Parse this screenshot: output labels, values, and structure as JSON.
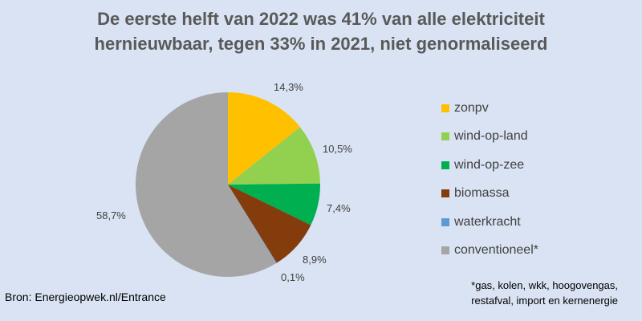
{
  "chart_data": {
    "type": "pie",
    "title_lines": [
      "De eerste helft van 2022 was 41% van alle elektriciteit",
      "hernieuwbaar, tegen 33% in 2021, niet genormaliseerd"
    ],
    "slices": [
      {
        "name": "zonpv",
        "value": 14.3,
        "label": "14,3%",
        "color": "#ffc000"
      },
      {
        "name": "wind-op-land",
        "value": 10.5,
        "label": "10,5%",
        "color": "#92d050"
      },
      {
        "name": "wind-op-zee",
        "value": 7.4,
        "label": "7,4%",
        "color": "#00b050"
      },
      {
        "name": "biomassa",
        "value": 8.9,
        "label": "8,9%",
        "color": "#843c0c"
      },
      {
        "name": "waterkracht",
        "value": 0.1,
        "label": "0,1%",
        "color": "#5b9bd5"
      },
      {
        "name": "conventioneel",
        "value": 58.7,
        "label": "58,7%",
        "color": "#a5a5a5"
      }
    ],
    "legend": {
      "placement": "right",
      "entries": [
        "zonpv",
        "wind-op-land",
        "wind-op-zee",
        "biomassa",
        "waterkracht",
        "conventioneel*"
      ]
    }
  },
  "source_text": "Bron: Energieopwek.nl/Entrance",
  "footnote_lines": [
    "*gas, kolen, wkk, hoogovengas,",
    "restafval, import en kernenergie"
  ]
}
